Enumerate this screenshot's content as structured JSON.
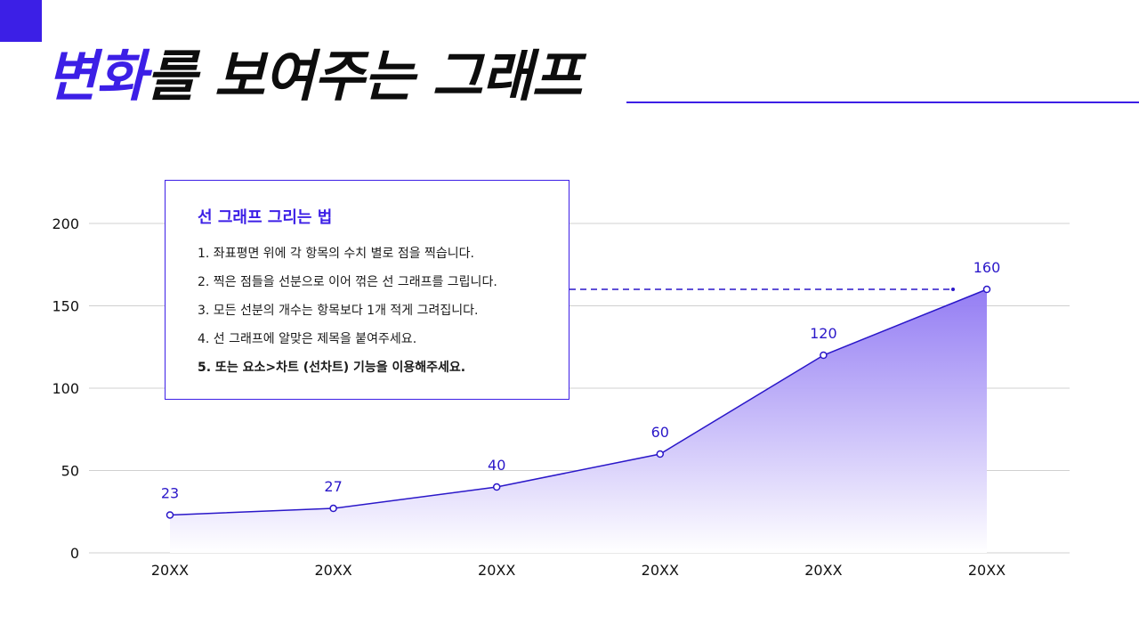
{
  "title": {
    "accent": "변화",
    "rest": "를 보여주는 그래프"
  },
  "info_box": {
    "heading": "선 그래프 그리는 법",
    "steps": [
      "1. 좌표평면 위에 각 항목의 수치 별로 점을 찍습니다.",
      "2. 찍은 점들을 선분으로 이어 꺾은 선 그래프를 그립니다.",
      "3. 모든 선분의 개수는 항목보다 1개 적게 그려집니다.",
      "4. 선 그래프에 알맞은 제목을 붙여주세요.",
      "5. 또는 요소>차트 (선차트) 기능을 이용해주세요."
    ]
  },
  "colors": {
    "accent": "#3c1fe6",
    "line": "#2a17c9",
    "area_top": "#8f77f3",
    "grid": "#d0d0d0",
    "text": "#111111"
  },
  "chart_data": {
    "type": "area",
    "categories": [
      "20XX",
      "20XX",
      "20XX",
      "20XX",
      "20XX",
      "20XX"
    ],
    "values": [
      23,
      27,
      40,
      60,
      120,
      160
    ],
    "ylim": [
      0,
      200
    ],
    "yticks": [
      0,
      50,
      100,
      150,
      200
    ],
    "grid": true,
    "data_labels": true,
    "reference_line": {
      "value": 160,
      "style": "dashed"
    }
  }
}
